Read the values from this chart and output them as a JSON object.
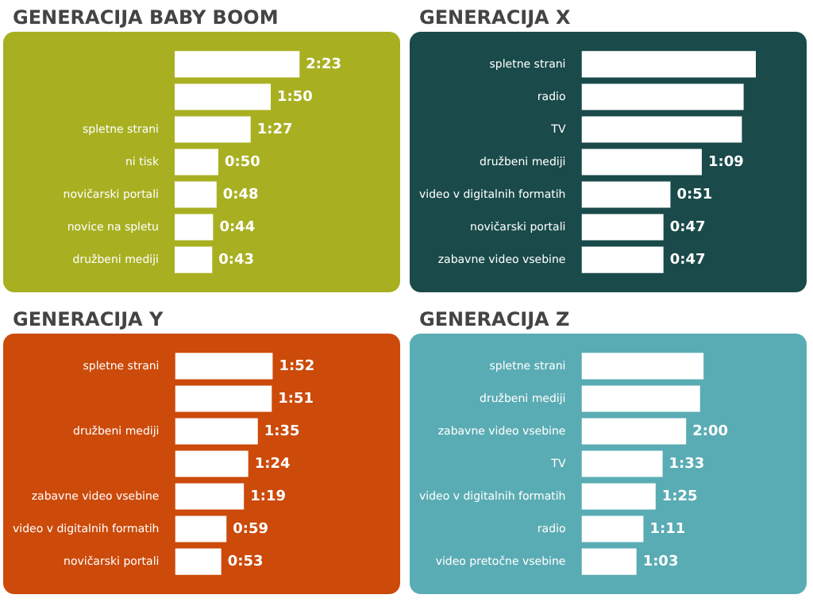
{
  "chart_data": [
    {
      "type": "bar",
      "orientation": "horizontal",
      "title": "GENERACIJA BABY BOOM",
      "color": "#ffffff",
      "categories": [
        null,
        null,
        "spletne strani",
        "ni tisk",
        "novičarski portali",
        "novice na spletu",
        "družbeni mediji"
      ],
      "values": [
        143,
        110,
        87,
        50,
        48,
        44,
        43
      ],
      "value_labels": [
        "2:23",
        "1:50",
        "1:27",
        "0:50",
        "0:48",
        "0:44",
        "0:43"
      ]
    },
    {
      "type": "bar",
      "orientation": "horizontal",
      "title": "GENERACIJA X",
      "color": "#ffffff",
      "categories": [
        "spletne strani",
        "radio",
        "TV",
        "družbeni mediji",
        "video v digitalnih formatih",
        "novičarski portali",
        "zabavne video vsebine"
      ],
      "values": [
        100,
        93,
        92,
        69,
        51,
        47,
        47
      ],
      "value_labels": [
        null,
        null,
        null,
        "1:09",
        "0:51",
        "0:47",
        "0:47"
      ]
    },
    {
      "type": "bar",
      "orientation": "horizontal",
      "title": "GENERACIJA Y",
      "color": "#ffffff",
      "categories": [
        "spletne strani",
        null,
        "družbeni mediji",
        null,
        "zabavne video vsebine",
        "video v digitalnih formatih",
        "novičarski portali"
      ],
      "values": [
        112,
        111,
        95,
        84,
        79,
        59,
        53
      ],
      "value_labels": [
        "1:52",
        "1:51",
        "1:35",
        "1:24",
        "1:19",
        "0:59",
        "0:53"
      ]
    },
    {
      "type": "bar",
      "orientation": "horizontal",
      "title": "GENERACIJA Z",
      "color": "#ffffff",
      "categories": [
        "spletne strani",
        "družbeni mediji",
        "zabavne video vsebine",
        "TV",
        "video v digitalnih formatih",
        "radio",
        "video pretočne vsebine"
      ],
      "values": [
        140,
        136,
        120,
        93,
        85,
        71,
        63
      ],
      "value_labels": [
        null,
        null,
        "2:00",
        "1:33",
        "1:25",
        "1:11",
        "1:03"
      ]
    }
  ]
}
